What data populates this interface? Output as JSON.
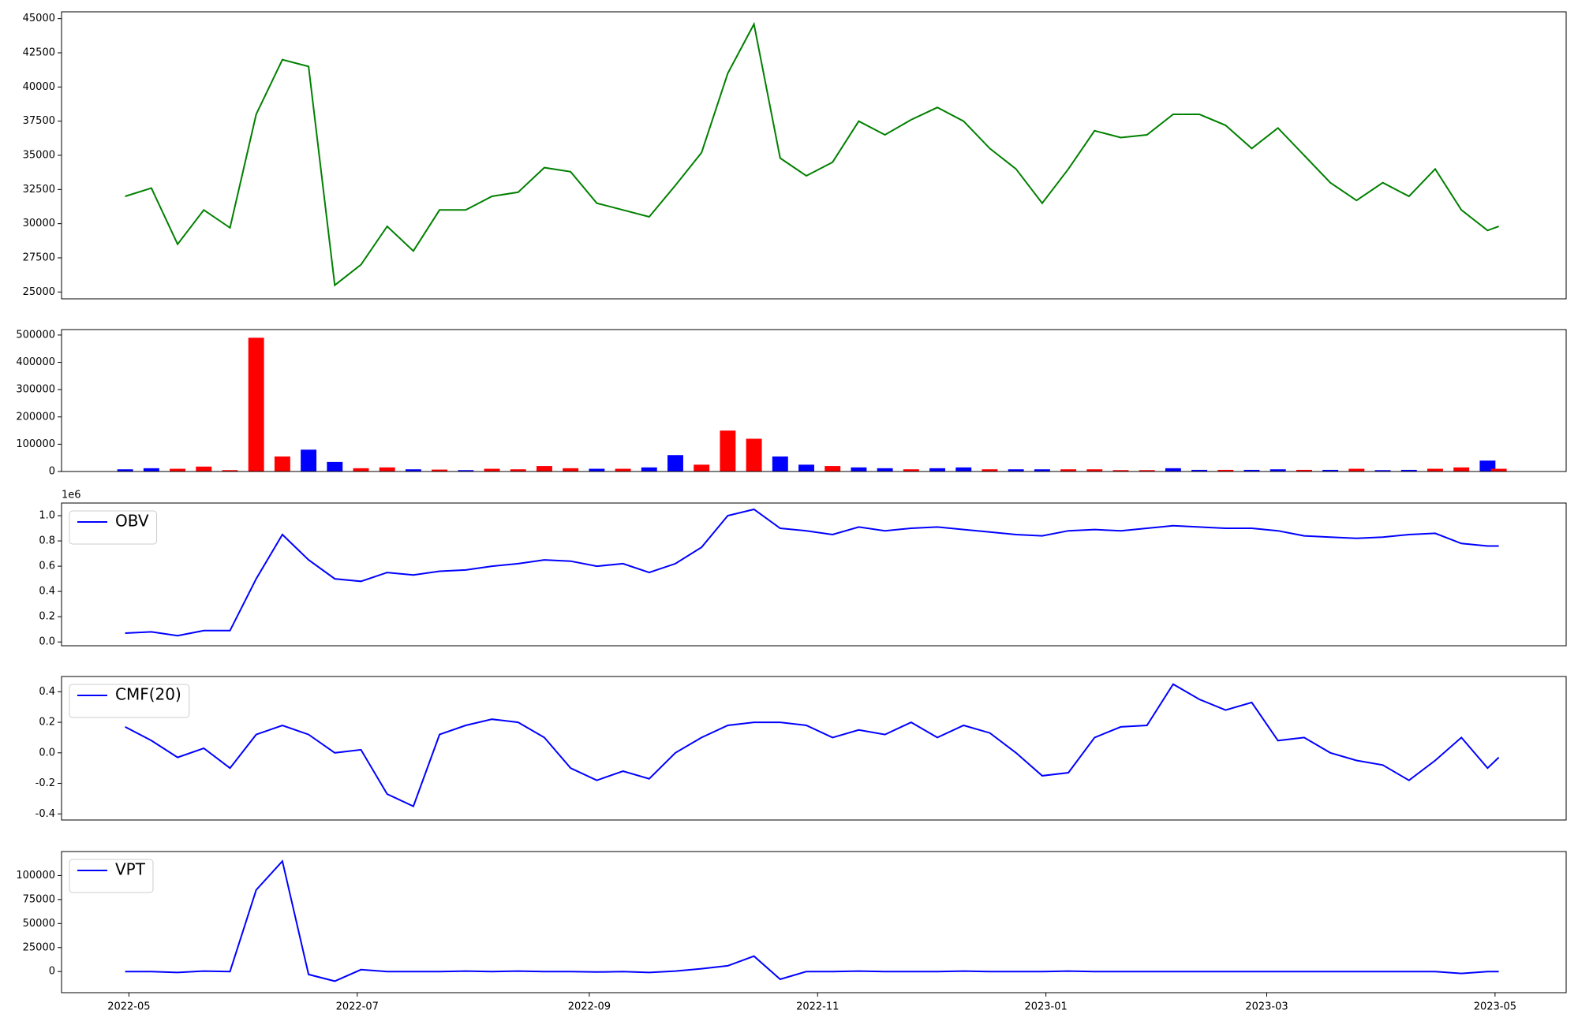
{
  "chart_data": [
    {
      "type": "line",
      "x": [
        "2022-04-30",
        "2022-05-07",
        "2022-05-14",
        "2022-05-21",
        "2022-05-28",
        "2022-06-04",
        "2022-06-11",
        "2022-06-18",
        "2022-06-25",
        "2022-07-02",
        "2022-07-09",
        "2022-07-16",
        "2022-07-23",
        "2022-07-30",
        "2022-08-06",
        "2022-08-13",
        "2022-08-20",
        "2022-08-27",
        "2022-09-03",
        "2022-09-10",
        "2022-09-17",
        "2022-09-24",
        "2022-10-01",
        "2022-10-08",
        "2022-10-15",
        "2022-10-22",
        "2022-10-29",
        "2022-11-05",
        "2022-11-12",
        "2022-11-19",
        "2022-11-26",
        "2022-12-03",
        "2022-12-10",
        "2022-12-17",
        "2022-12-24",
        "2022-12-31",
        "2023-01-07",
        "2023-01-14",
        "2023-01-21",
        "2023-01-28",
        "2023-02-04",
        "2023-02-11",
        "2023-02-18",
        "2023-02-25",
        "2023-03-04",
        "2023-03-11",
        "2023-03-18",
        "2023-03-25",
        "2023-04-01",
        "2023-04-08",
        "2023-04-15",
        "2023-04-22",
        "2023-04-29",
        "2023-05-02"
      ],
      "xlim": [
        "2022-04-13",
        "2023-05-20"
      ],
      "xticks": [
        "2022-05",
        "2022-07",
        "2022-09",
        "2022-11",
        "2023-01",
        "2023-03",
        "2023-05"
      ],
      "ylim": [
        24500,
        45500
      ],
      "yticks": [
        25000,
        27500,
        30000,
        32500,
        35000,
        37500,
        40000,
        42500,
        45000
      ],
      "series": [
        {
          "color": "#008000",
          "values": [
            32000,
            32600,
            28500,
            31000,
            29700,
            38000,
            42000,
            41500,
            25500,
            27000,
            29800,
            28000,
            31000,
            31000,
            32000,
            32300,
            34100,
            33800,
            31500,
            31000,
            30500,
            32800,
            35200,
            41000,
            44600,
            34800,
            33500,
            34500,
            37500,
            36500,
            37600,
            38500,
            37500,
            35500,
            34000,
            31500,
            34000,
            36800,
            36300,
            36500,
            38000,
            38000,
            37200,
            35500,
            37000,
            35000,
            33000,
            31700,
            33000,
            32000,
            34000,
            31000,
            29500,
            29800
          ]
        }
      ]
    },
    {
      "type": "bar",
      "ylim": [
        0,
        520000
      ],
      "yticks": [
        0,
        100000,
        200000,
        300000,
        400000,
        500000
      ],
      "values": [
        8000,
        12000,
        10000,
        18000,
        5000,
        490000,
        55000,
        80000,
        35000,
        12000,
        15000,
        8000,
        7000,
        5000,
        10000,
        8000,
        20000,
        12000,
        10000,
        10000,
        15000,
        60000,
        25000,
        150000,
        120000,
        55000,
        25000,
        20000,
        15000,
        12000,
        8000,
        12000,
        15000,
        8000,
        8000,
        8000,
        8000,
        8000,
        5000,
        5000,
        12000,
        6000,
        6000,
        6000,
        8000,
        6000,
        6000,
        10000,
        5000,
        6000,
        10000,
        15000,
        40000,
        10000
      ],
      "colors": [
        "#0000ff",
        "#0000ff",
        "#ff0000",
        "#ff0000",
        "#ff0000",
        "#ff0000",
        "#ff0000",
        "#0000ff",
        "#0000ff",
        "#ff0000",
        "#ff0000",
        "#0000ff",
        "#ff0000",
        "#0000ff",
        "#ff0000",
        "#ff0000",
        "#ff0000",
        "#ff0000",
        "#0000ff",
        "#ff0000",
        "#0000ff",
        "#0000ff",
        "#ff0000",
        "#ff0000",
        "#ff0000",
        "#0000ff",
        "#0000ff",
        "#ff0000",
        "#0000ff",
        "#0000ff",
        "#ff0000",
        "#0000ff",
        "#0000ff",
        "#ff0000",
        "#0000ff",
        "#0000ff",
        "#ff0000",
        "#ff0000",
        "#ff0000",
        "#ff0000",
        "#0000ff",
        "#0000ff",
        "#ff0000",
        "#0000ff",
        "#0000ff",
        "#ff0000",
        "#0000ff",
        "#ff0000",
        "#0000ff",
        "#0000ff",
        "#ff0000",
        "#ff0000",
        "#0000ff",
        "#ff0000"
      ]
    },
    {
      "type": "line",
      "offset_label": "1e6",
      "legend": "upper left",
      "ylim": [
        -0.03,
        1.1
      ],
      "yticks": [
        {
          "value": 0,
          "label": "0.0"
        },
        0.2,
        0.4,
        0.6,
        0.8,
        {
          "value": 1,
          "label": "1.0"
        }
      ],
      "series": [
        {
          "name": "OBV",
          "color": "#0000ff",
          "values": [
            0.07,
            0.08,
            0.05,
            0.09,
            0.09,
            0.5,
            0.85,
            0.65,
            0.5,
            0.48,
            0.55,
            0.53,
            0.56,
            0.57,
            0.6,
            0.62,
            0.65,
            0.64,
            0.6,
            0.62,
            0.55,
            0.62,
            0.75,
            1.0,
            1.05,
            0.9,
            0.88,
            0.85,
            0.91,
            0.88,
            0.9,
            0.91,
            0.89,
            0.87,
            0.85,
            0.84,
            0.88,
            0.89,
            0.88,
            0.9,
            0.92,
            0.91,
            0.9,
            0.9,
            0.88,
            0.84,
            0.83,
            0.82,
            0.83,
            0.85,
            0.86,
            0.78,
            0.76,
            0.76
          ]
        }
      ]
    },
    {
      "type": "line",
      "legend": "upper left",
      "ylim": [
        -0.44,
        0.5
      ],
      "yticks": [
        -0.4,
        -0.2,
        {
          "value": 0,
          "label": "0.0"
        },
        0.2,
        0.4
      ],
      "series": [
        {
          "name": "CMF(20)",
          "color": "#0000ff",
          "values": [
            0.17,
            0.08,
            -0.03,
            0.03,
            -0.1,
            0.12,
            0.18,
            0.12,
            0.0,
            0.02,
            -0.27,
            -0.35,
            0.12,
            0.18,
            0.22,
            0.2,
            0.1,
            -0.1,
            -0.18,
            -0.12,
            -0.17,
            0.0,
            0.1,
            0.18,
            0.2,
            0.2,
            0.18,
            0.1,
            0.15,
            0.12,
            0.2,
            0.1,
            0.18,
            0.13,
            0.0,
            -0.15,
            -0.13,
            0.1,
            0.17,
            0.18,
            0.45,
            0.35,
            0.28,
            0.33,
            0.08,
            0.1,
            0.0,
            -0.05,
            -0.08,
            -0.18,
            -0.05,
            0.1,
            -0.1,
            -0.03
          ]
        }
      ]
    },
    {
      "type": "line",
      "legend": "upper left",
      "ylim": [
        -22000,
        125000
      ],
      "yticks": [
        0,
        25000,
        50000,
        75000,
        100000
      ],
      "series": [
        {
          "name": "VPT",
          "color": "#0000ff",
          "values": [
            0,
            0,
            -1000,
            500,
            0,
            85000,
            115000,
            -3000,
            -10000,
            2000,
            0,
            0,
            0,
            500,
            0,
            500,
            0,
            0,
            -500,
            0,
            -1000,
            500,
            3000,
            6000,
            16000,
            -8000,
            0,
            0,
            500,
            0,
            0,
            0,
            500,
            0,
            0,
            0,
            500,
            0,
            0,
            0,
            0,
            0,
            0,
            0,
            0,
            0,
            0,
            0,
            0,
            0,
            0,
            -2000,
            0,
            0
          ]
        }
      ]
    }
  ]
}
